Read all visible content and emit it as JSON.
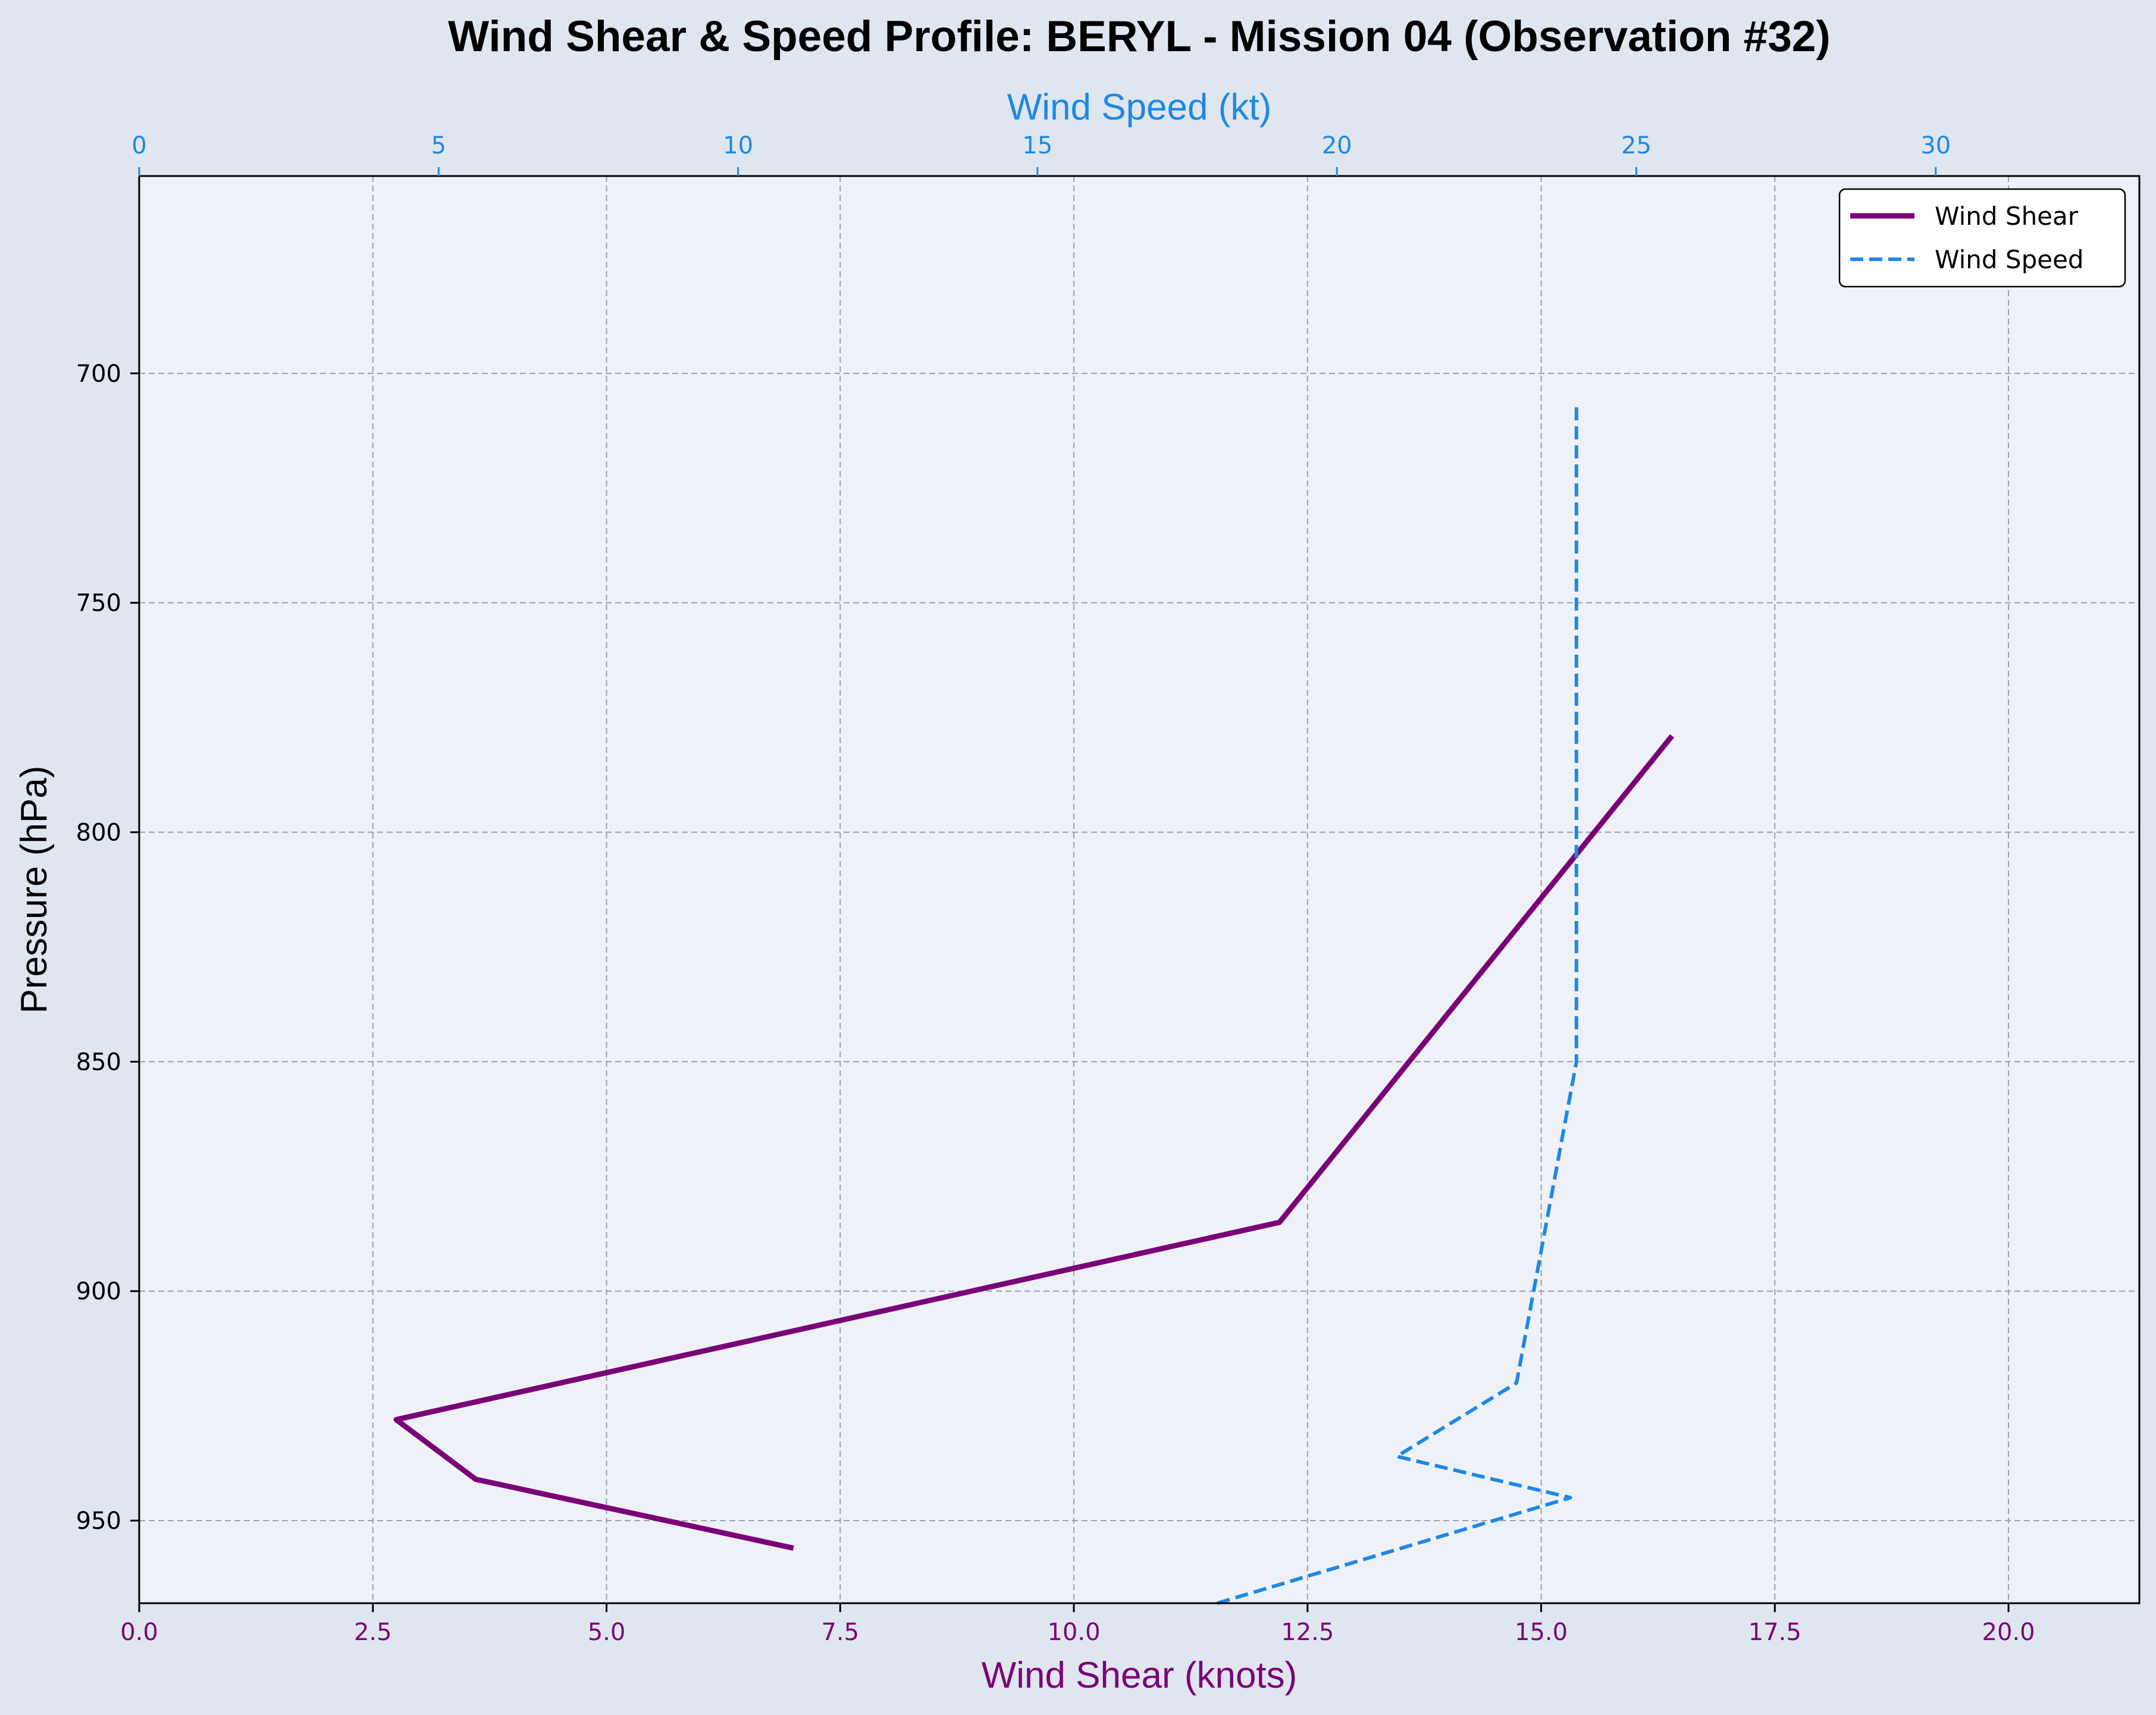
{
  "chart_data": {
    "type": "line",
    "title": "Wind Shear & Speed Profile: BERYL - Mission 04 (Observation #32)",
    "xlabel_bottom": "Wind Shear (knots)",
    "xlabel_top": "Wind Speed (kt)",
    "ylabel": "Pressure (hPa)",
    "xlim_bottom": [
      0,
      21.4
    ],
    "xlim_top": [
      0,
      33.4
    ],
    "ylim": [
      968,
      657
    ],
    "y_inverted": true,
    "grid": true,
    "legend_position": "upper right",
    "x_ticks_bottom": [
      "0.0",
      "2.5",
      "5.0",
      "7.5",
      "10.0",
      "12.5",
      "15.0",
      "17.5",
      "20.0"
    ],
    "x_ticks_top": [
      "0",
      "5",
      "10",
      "15",
      "20",
      "25",
      "30"
    ],
    "y_ticks": [
      "700",
      "750",
      "800",
      "850",
      "900",
      "950"
    ],
    "series": [
      {
        "name": "Wind Shear",
        "axis": "bottom",
        "color": "#7b0077",
        "style": "solid",
        "points": [
          {
            "x": 7.0,
            "y": 956
          },
          {
            "x": 3.6,
            "y": 941
          },
          {
            "x": 2.75,
            "y": 928
          },
          {
            "x": 12.2,
            "y": 885
          },
          {
            "x": 16.4,
            "y": 779
          }
        ]
      },
      {
        "name": "Wind Speed",
        "axis": "top",
        "color": "#1e88e5",
        "style": "dashed",
        "points": [
          {
            "x": 18.0,
            "y": 968
          },
          {
            "x": 23.9,
            "y": 945
          },
          {
            "x": 21.0,
            "y": 936
          },
          {
            "x": 23.0,
            "y": 920
          },
          {
            "x": 24.0,
            "y": 850
          },
          {
            "x": 24.0,
            "y": 707
          }
        ]
      }
    ]
  },
  "colors": {
    "page_background": "#dfe6f0",
    "plot_background": "#eef2f8",
    "shear_axis": "#7b0077",
    "speed_axis": "#1e88e5",
    "grid": "#9aa0a8"
  }
}
